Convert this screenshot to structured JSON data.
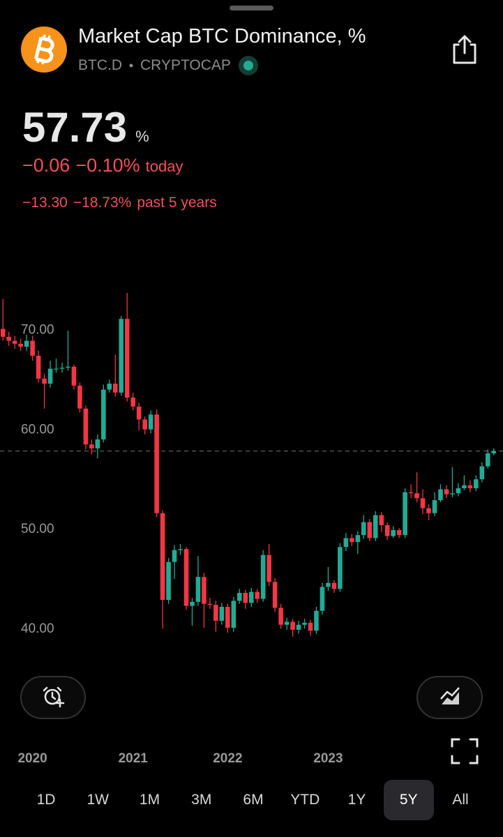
{
  "header": {
    "title": "Market Cap BTC Dominance, %",
    "symbol": "BTC.D",
    "exchange": "CRYPTOCAP",
    "price": 57.73,
    "unit": "%",
    "change": "−0.06",
    "change_pct": "−0.10%",
    "change_period": "today",
    "long_change": "−13.30",
    "long_change_pct": "−18.73%",
    "long_period": "past 5 years"
  },
  "chart_data": {
    "type": "candlestick",
    "categories": [
      null,
      null,
      null,
      null,
      null,
      "2020",
      null,
      null,
      null,
      null,
      null,
      null,
      null,
      null,
      null,
      null,
      null,
      null,
      null,
      null,
      null,
      null,
      "2021",
      null,
      null,
      null,
      null,
      null,
      null,
      null,
      null,
      null,
      null,
      null,
      null,
      null,
      null,
      null,
      "2022",
      null,
      null,
      null,
      null,
      null,
      null,
      null,
      null,
      null,
      null,
      null,
      null,
      null,
      null,
      null,
      null,
      "2023",
      null,
      null,
      null,
      null,
      null,
      null,
      null,
      null,
      null,
      null,
      null,
      null,
      null,
      null,
      null,
      null,
      null,
      null,
      null,
      null,
      null,
      null,
      null,
      null,
      null,
      null,
      null,
      null
    ],
    "open": [
      70.0,
      69.2,
      68.8,
      68.5,
      68.2,
      68.8,
      67.3,
      65.0,
      64.5,
      66.0,
      66.0,
      66.1,
      66.2,
      64.3,
      62.0,
      58.4,
      58.0,
      58.9,
      63.9,
      64.5,
      63.6,
      71.0,
      63.1,
      62.2,
      60.9,
      59.9,
      61.4,
      51.5,
      42.8,
      46.6,
      47.8,
      47.9,
      42.2,
      42.6,
      45.1,
      42.4,
      42.3,
      40.7,
      42.1,
      40.0,
      42.7,
      43.5,
      42.5,
      43.6,
      42.9,
      47.3,
      44.6,
      42.0,
      40.3,
      40.6,
      39.8,
      40.3,
      40.5,
      39.7,
      41.7,
      44.1,
      44.5,
      43.9,
      48.1,
      49.0,
      48.6,
      49.3,
      50.6,
      49.0,
      51.3,
      50.3,
      49.2,
      49.8,
      49.3,
      53.6,
      53.5,
      53.0,
      52.0,
      51.5,
      52.8,
      53.9,
      53.4,
      53.5,
      54.0,
      54.3,
      54.0,
      54.9,
      56.2,
      57.5
    ],
    "high": [
      73.0,
      69.7,
      69.3,
      69.0,
      69.4,
      69.3,
      67.8,
      65.5,
      66.8,
      67.0,
      66.6,
      69.8,
      66.4,
      64.6,
      62.3,
      58.9,
      59.4,
      64.4,
      64.9,
      67.4,
      71.3,
      73.6,
      63.6,
      62.6,
      61.2,
      61.8,
      61.9,
      51.8,
      47.0,
      48.3,
      48.4,
      48.1,
      43.0,
      47.2,
      45.5,
      43.0,
      42.7,
      42.5,
      42.4,
      43.1,
      43.9,
      43.8,
      44.0,
      43.9,
      47.8,
      48.4,
      45.0,
      42.4,
      41.0,
      40.9,
      40.7,
      40.9,
      40.8,
      42.1,
      44.5,
      46.1,
      44.8,
      48.5,
      49.5,
      49.4,
      49.7,
      51.3,
      50.9,
      51.7,
      51.6,
      50.6,
      50.2,
      50.0,
      54.0,
      54.4,
      55.6,
      53.9,
      52.4,
      53.6,
      54.4,
      54.3,
      56.1,
      54.5,
      55.3,
      54.8,
      55.3,
      56.6,
      57.9,
      58.0
    ],
    "low": [
      68.8,
      68.3,
      68.0,
      67.8,
      67.8,
      66.8,
      64.6,
      62.0,
      64.1,
      65.6,
      65.6,
      65.8,
      63.9,
      61.6,
      57.9,
      57.4,
      57.0,
      58.6,
      63.6,
      63.2,
      63.3,
      62.7,
      61.8,
      59.8,
      59.4,
      59.5,
      51.1,
      39.9,
      42.4,
      44.9,
      47.3,
      41.8,
      40.2,
      42.2,
      40.0,
      41.9,
      39.6,
      40.3,
      39.5,
      39.6,
      42.4,
      41.9,
      42.1,
      42.5,
      42.6,
      44.2,
      41.6,
      39.9,
      39.8,
      39.1,
      39.4,
      39.9,
      39.2,
      39.4,
      41.3,
      43.7,
      43.5,
      43.6,
      47.7,
      48.2,
      47.4,
      48.9,
      48.7,
      48.7,
      49.6,
      48.8,
      49.0,
      49.0,
      49.0,
      53.0,
      52.6,
      51.4,
      50.8,
      51.2,
      52.6,
      53.0,
      53.1,
      53.2,
      53.8,
      53.6,
      53.7,
      54.6,
      56.0,
      57.3
    ],
    "close": [
      69.2,
      68.8,
      68.5,
      68.2,
      68.8,
      67.3,
      65.0,
      64.5,
      66.0,
      66.0,
      66.1,
      66.2,
      64.3,
      62.0,
      58.4,
      58.0,
      58.9,
      63.9,
      64.5,
      63.6,
      71.0,
      63.1,
      62.2,
      60.9,
      59.9,
      61.4,
      51.5,
      42.8,
      46.6,
      47.8,
      47.9,
      42.2,
      42.6,
      45.1,
      42.4,
      42.3,
      40.7,
      42.1,
      40.0,
      42.7,
      43.5,
      42.5,
      43.6,
      42.9,
      47.3,
      44.6,
      42.0,
      40.3,
      40.6,
      39.8,
      40.3,
      40.5,
      39.7,
      41.7,
      44.1,
      44.5,
      43.9,
      48.1,
      49.0,
      48.6,
      49.3,
      50.6,
      49.0,
      51.3,
      50.3,
      49.2,
      49.8,
      49.3,
      53.6,
      53.5,
      53.0,
      52.0,
      51.5,
      52.8,
      53.9,
      53.4,
      53.5,
      54.0,
      54.3,
      54.0,
      54.9,
      56.2,
      57.5,
      57.73
    ],
    "up_color": "#22ab94",
    "down_color": "#f23645",
    "ylim": [
      36.5,
      75
    ],
    "yticks": [
      {
        "value": 40,
        "label": "40.00"
      },
      {
        "value": 50,
        "label": "50.00"
      },
      {
        "value": 60,
        "label": "60.00"
      },
      {
        "value": 70,
        "label": "70.00"
      }
    ]
  },
  "ranges": [
    "1D",
    "1W",
    "1M",
    "3M",
    "6M",
    "YTD",
    "1Y",
    "5Y",
    "All"
  ],
  "selected_range_index": 7
}
